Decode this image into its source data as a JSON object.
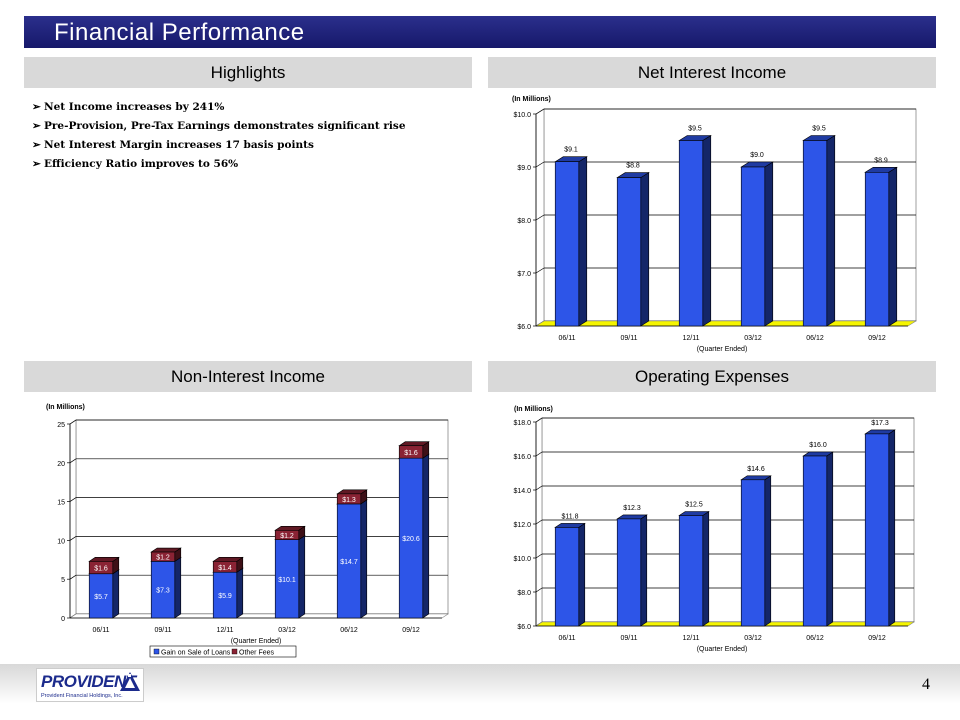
{
  "title": "Financial Performance",
  "sections": {
    "highlights": "Highlights",
    "net_interest_income": "Net Interest Income",
    "non_interest_income": "Non-Interest Income",
    "operating_expenses": "Operating Expenses"
  },
  "highlights": [
    "Net Income increases by 241%",
    "Pre-Provision, Pre-Tax Earnings demonstrates significant rise",
    "Net Interest Margin increases 17 basis points",
    "Efficiency Ratio improves to 56%"
  ],
  "colors": {
    "title_bar": "#1f2280",
    "section_head": "#d9d9d9",
    "bar_blue": "#2d55e8",
    "bar_maroon": "#8a2334",
    "floor_yellow": "#f5f500"
  },
  "footer": {
    "logo_word": "PROVIDENT",
    "logo_subtitle": "Provident Financial Holdings, Inc.",
    "page_number": "4"
  },
  "chart_data": [
    {
      "id": "net_interest_income",
      "type": "bar",
      "units_label": "(In Millions)",
      "xlabel": "(Quarter Ended)",
      "categories": [
        "06/11",
        "09/11",
        "12/11",
        "03/12",
        "06/12",
        "09/12"
      ],
      "values": [
        9.1,
        8.8,
        9.5,
        9.0,
        9.5,
        8.9
      ],
      "data_labels": [
        "$9.1",
        "$8.8",
        "$9.5",
        "$9.0",
        "$9.5",
        "$8.9"
      ],
      "ylim": [
        6.0,
        10.0
      ],
      "yticks": [
        6.0,
        7.0,
        8.0,
        9.0,
        10.0
      ],
      "ytick_labels": [
        "$6.0",
        "$7.0",
        "$8.0",
        "$9.0",
        "$10.0"
      ],
      "grid": true,
      "legend": "none"
    },
    {
      "id": "non_interest_income",
      "type": "bar",
      "stacked": true,
      "units_label": "(In Millions)",
      "xlabel": "(Quarter Ended)",
      "categories": [
        "06/11",
        "09/11",
        "12/11",
        "03/12",
        "06/12",
        "09/12"
      ],
      "series": [
        {
          "name": "Gain on Sale of Loans",
          "values": [
            5.7,
            7.3,
            5.9,
            10.1,
            14.7,
            20.6
          ],
          "labels": [
            "$5.7",
            "$7.3",
            "$5.9",
            "$10.1",
            "$14.7",
            "$20.6"
          ]
        },
        {
          "name": "Other Fees",
          "values": [
            1.6,
            1.2,
            1.4,
            1.2,
            1.3,
            1.6
          ],
          "labels": [
            "$1.6",
            "$1.2",
            "$1.4",
            "$1.2",
            "$1.3",
            "$1.6"
          ]
        }
      ],
      "ylim": [
        0,
        25
      ],
      "yticks": [
        0,
        5,
        10,
        15,
        20,
        25
      ],
      "ytick_labels": [
        "0",
        "5",
        "10",
        "15",
        "20",
        "25"
      ],
      "grid": true,
      "legend": "bottom"
    },
    {
      "id": "operating_expenses",
      "type": "bar",
      "units_label": "(In Millions)",
      "xlabel": "(Quarter Ended)",
      "categories": [
        "06/11",
        "09/11",
        "12/11",
        "03/12",
        "06/12",
        "09/12"
      ],
      "values": [
        11.8,
        12.3,
        12.5,
        14.6,
        16.0,
        17.3
      ],
      "data_labels": [
        "$11.8",
        "$12.3",
        "$12.5",
        "$14.6",
        "$16.0",
        "$17.3"
      ],
      "ylim": [
        6.0,
        18.0
      ],
      "yticks": [
        6.0,
        8.0,
        10.0,
        12.0,
        14.0,
        16.0,
        18.0
      ],
      "ytick_labels": [
        "$6.0",
        "$8.0",
        "$10.0",
        "$12.0",
        "$14.0",
        "$16.0",
        "$18.0"
      ],
      "grid": true,
      "legend": "none"
    }
  ]
}
